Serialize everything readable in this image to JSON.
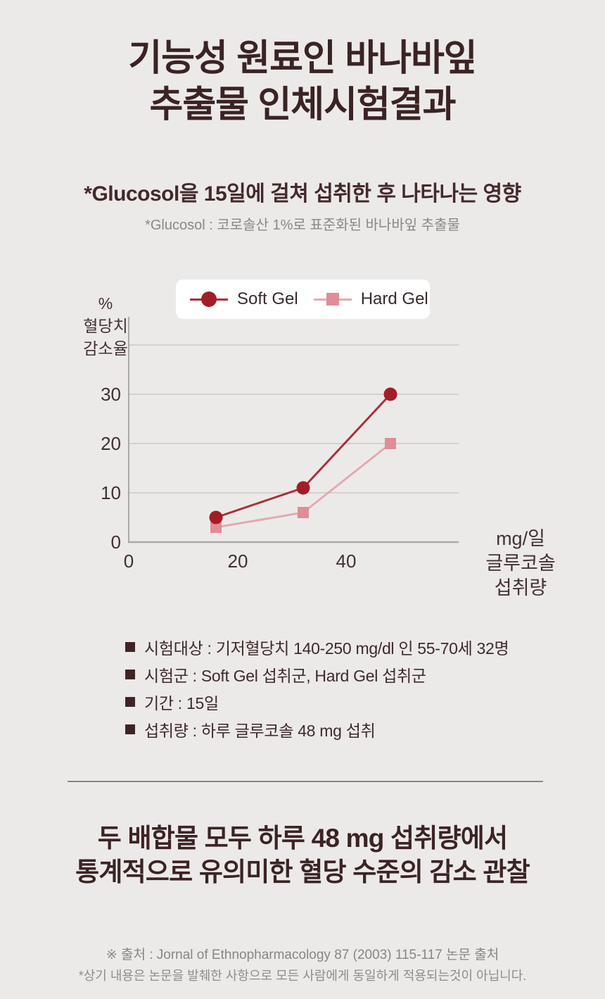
{
  "header": {
    "title_line1": "기능성 원료인 바나바잎",
    "title_line2": "추출물 인체시험결과",
    "subtitle": "*Glucosol을 15일에 걸쳐 섭취한 후 나타나는 영향",
    "note": "*Glucosol : 코로솔산 1%로 표준화된 바나바잎 추출물"
  },
  "chart_data": {
    "type": "line",
    "x": [
      16,
      32,
      48
    ],
    "series": [
      {
        "name": "Soft Gel",
        "values": [
          5,
          11,
          30
        ],
        "marker": "circle",
        "color": "#A41D26",
        "line_color": "#A8303A"
      },
      {
        "name": "Hard Gel",
        "values": [
          3,
          6,
          20
        ],
        "marker": "square",
        "color": "#E08D96",
        "line_color": "#E5A9B0"
      }
    ],
    "legend_position": "top",
    "grid": true,
    "gridline_values": [
      40,
      30,
      20,
      10
    ],
    "yticks": [
      "30",
      "20",
      "10",
      "0"
    ],
    "xticks": [
      "0",
      "20",
      "40"
    ],
    "xlim": [
      0,
      60
    ],
    "ylim": [
      0,
      45
    ],
    "ylabel_lines": [
      "%",
      "혈당치",
      "감소율"
    ],
    "xunit_lines": [
      "mg/일",
      "글루코솔",
      "섭취량"
    ]
  },
  "study_details": {
    "items": [
      {
        "text": "시험대상 : 기저혈당치 140-250 mg/dl 인 55-70세 32명"
      },
      {
        "text": "시험군 : Soft Gel 섭취군, Hard Gel 섭취군"
      },
      {
        "text": "기간 : 15일"
      },
      {
        "text": "섭취량 : 하루 글루코솔 48 mg 섭취"
      }
    ]
  },
  "conclusion": {
    "line1": "두 배합물 모두 하루 48 mg 섭취량에서",
    "line2": "통계적으로 유의미한 혈당 수준의 감소 관찰"
  },
  "footer": {
    "source": "※ 출처 : Jornal of Ethnopharmacology 87 (2003) 115-117 논문 출처",
    "disclaimer": "*상기 내용은 논문을 발췌한 사항으로 모든 사람에게 동일하게 적용되는것이 아닙니다."
  },
  "colors": {
    "background": "#ECEAE9",
    "title_text": "#3B2324",
    "muted_text": "#8C8684",
    "soft_gel": "#A41D26",
    "soft_gel_line": "#A8303A",
    "hard_gel": "#E08D96",
    "hard_gel_line": "#E5A9B0",
    "grid": "#D3D0CE",
    "axis": "#ACA8A6",
    "legend_background": "#FFFFFF",
    "divider": "#8D8486"
  }
}
